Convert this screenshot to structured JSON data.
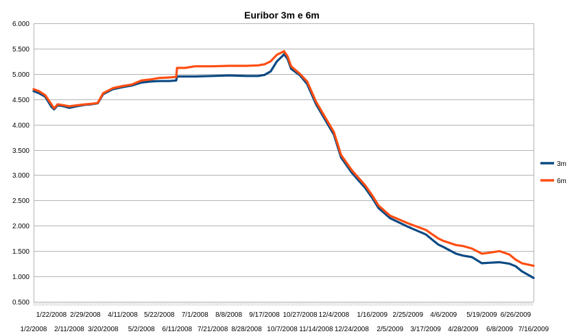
{
  "chart_data": {
    "type": "line",
    "title": "Euribor 3m e 6m",
    "xlabel": "",
    "ylabel": "",
    "ylim": [
      0.5,
      6.0
    ],
    "yticks": [
      "6.000",
      "5.500",
      "5.000",
      "4.500",
      "4.000",
      "3.500",
      "3.000",
      "2.500",
      "2.000",
      "1.500",
      "1.000",
      "0.500"
    ],
    "xticks_upper": [
      "1/22/2008",
      "2/29/2008",
      "4/11/2008",
      "5/22/2008",
      "7/1/2008",
      "8/8/2008",
      "9/17/2008",
      "10/27/2008",
      "12/4/2008",
      "1/16/2009",
      "2/25/2009",
      "4/6/2009",
      "5/19/2009",
      "6/26/2009"
    ],
    "xticks_lower": [
      "1/2/2008",
      "2/11/2008",
      "3/20/2008",
      "5/2/2008",
      "6/11/2008",
      "7/21/2008",
      "8/28/2008",
      "10/7/2008",
      "11/14/2008",
      "12/24/2008",
      "2/5/2009",
      "3/17/2009",
      "4/28/2009",
      "6/8/2009",
      "7/16/2009"
    ],
    "grid": true,
    "legend_position": "right",
    "colors": {
      "3m": "#0b4a84",
      "6m": "#ff4e12",
      "grid": "#b3b3b3",
      "axis": "#b3b3b3"
    },
    "series": [
      {
        "name": "3m",
        "points": [
          [
            "1/2/2008",
            4.66
          ],
          [
            "1/8/2008",
            4.62
          ],
          [
            "1/15/2008",
            4.55
          ],
          [
            "1/22/2008",
            4.35
          ],
          [
            "1/25/2008",
            4.3
          ],
          [
            "1/29/2008",
            4.38
          ],
          [
            "2/5/2008",
            4.36
          ],
          [
            "2/11/2008",
            4.33
          ],
          [
            "2/19/2008",
            4.36
          ],
          [
            "2/29/2008",
            4.39
          ],
          [
            "3/7/2008",
            4.4
          ],
          [
            "3/14/2008",
            4.42
          ],
          [
            "3/20/2008",
            4.6
          ],
          [
            "3/31/2008",
            4.7
          ],
          [
            "4/11/2008",
            4.74
          ],
          [
            "4/21/2008",
            4.77
          ],
          [
            "5/2/2008",
            4.83
          ],
          [
            "5/12/2008",
            4.85
          ],
          [
            "5/22/2008",
            4.86
          ],
          [
            "6/2/2008",
            4.86
          ],
          [
            "6/10/2008",
            4.87
          ],
          [
            "6/11/2008",
            4.95
          ],
          [
            "6/20/2008",
            4.95
          ],
          [
            "7/1/2008",
            4.95
          ],
          [
            "7/21/2008",
            4.96
          ],
          [
            "8/8/2008",
            4.97
          ],
          [
            "8/28/2008",
            4.96
          ],
          [
            "9/10/2008",
            4.96
          ],
          [
            "9/17/2008",
            4.98
          ],
          [
            "9/24/2008",
            5.05
          ],
          [
            "10/1/2008",
            5.25
          ],
          [
            "10/7/2008",
            5.35
          ],
          [
            "10/9/2008",
            5.39
          ],
          [
            "10/13/2008",
            5.3
          ],
          [
            "10/17/2008",
            5.1
          ],
          [
            "10/27/2008",
            4.97
          ],
          [
            "11/4/2008",
            4.8
          ],
          [
            "11/14/2008",
            4.4
          ],
          [
            "11/24/2008",
            4.1
          ],
          [
            "12/4/2008",
            3.8
          ],
          [
            "12/12/2008",
            3.35
          ],
          [
            "12/24/2008",
            3.05
          ],
          [
            "1/8/2009",
            2.75
          ],
          [
            "1/16/2009",
            2.55
          ],
          [
            "1/23/2009",
            2.35
          ],
          [
            "2/5/2009",
            2.15
          ],
          [
            "2/25/2009",
            1.98
          ],
          [
            "3/17/2009",
            1.83
          ],
          [
            "3/31/2009",
            1.63
          ],
          [
            "4/6/2009",
            1.58
          ],
          [
            "4/20/2009",
            1.45
          ],
          [
            "4/28/2009",
            1.41
          ],
          [
            "5/8/2009",
            1.38
          ],
          [
            "5/19/2009",
            1.26
          ],
          [
            "5/28/2009",
            1.27
          ],
          [
            "6/8/2009",
            1.28
          ],
          [
            "6/19/2009",
            1.25
          ],
          [
            "6/26/2009",
            1.2
          ],
          [
            "7/3/2009",
            1.1
          ],
          [
            "7/16/2009",
            0.97
          ]
        ]
      },
      {
        "name": "6m",
        "points": [
          [
            "1/2/2008",
            4.7
          ],
          [
            "1/8/2008",
            4.66
          ],
          [
            "1/15/2008",
            4.58
          ],
          [
            "1/22/2008",
            4.4
          ],
          [
            "1/25/2008",
            4.32
          ],
          [
            "1/29/2008",
            4.4
          ],
          [
            "2/5/2008",
            4.38
          ],
          [
            "2/11/2008",
            4.36
          ],
          [
            "2/19/2008",
            4.38
          ],
          [
            "2/29/2008",
            4.4
          ],
          [
            "3/7/2008",
            4.41
          ],
          [
            "3/14/2008",
            4.43
          ],
          [
            "3/20/2008",
            4.62
          ],
          [
            "3/31/2008",
            4.72
          ],
          [
            "4/11/2008",
            4.76
          ],
          [
            "4/21/2008",
            4.79
          ],
          [
            "5/2/2008",
            4.87
          ],
          [
            "5/12/2008",
            4.89
          ],
          [
            "5/22/2008",
            4.92
          ],
          [
            "6/2/2008",
            4.93
          ],
          [
            "6/10/2008",
            4.94
          ],
          [
            "6/11/2008",
            5.12
          ],
          [
            "6/20/2008",
            5.12
          ],
          [
            "7/1/2008",
            5.15
          ],
          [
            "7/21/2008",
            5.15
          ],
          [
            "8/8/2008",
            5.16
          ],
          [
            "8/28/2008",
            5.16
          ],
          [
            "9/10/2008",
            5.17
          ],
          [
            "9/17/2008",
            5.19
          ],
          [
            "9/24/2008",
            5.25
          ],
          [
            "10/1/2008",
            5.38
          ],
          [
            "10/7/2008",
            5.43
          ],
          [
            "10/9/2008",
            5.45
          ],
          [
            "10/13/2008",
            5.35
          ],
          [
            "10/17/2008",
            5.15
          ],
          [
            "10/27/2008",
            5.0
          ],
          [
            "11/4/2008",
            4.85
          ],
          [
            "11/14/2008",
            4.45
          ],
          [
            "11/24/2008",
            4.15
          ],
          [
            "12/4/2008",
            3.85
          ],
          [
            "12/12/2008",
            3.4
          ],
          [
            "12/24/2008",
            3.1
          ],
          [
            "1/8/2009",
            2.8
          ],
          [
            "1/16/2009",
            2.6
          ],
          [
            "1/23/2009",
            2.4
          ],
          [
            "2/5/2009",
            2.2
          ],
          [
            "2/25/2009",
            2.05
          ],
          [
            "3/17/2009",
            1.92
          ],
          [
            "3/31/2009",
            1.75
          ],
          [
            "4/6/2009",
            1.7
          ],
          [
            "4/20/2009",
            1.62
          ],
          [
            "4/28/2009",
            1.6
          ],
          [
            "5/8/2009",
            1.55
          ],
          [
            "5/19/2009",
            1.45
          ],
          [
            "5/28/2009",
            1.47
          ],
          [
            "6/8/2009",
            1.5
          ],
          [
            "6/19/2009",
            1.43
          ],
          [
            "6/26/2009",
            1.33
          ],
          [
            "7/3/2009",
            1.26
          ],
          [
            "7/16/2009",
            1.21
          ]
        ]
      }
    ]
  }
}
